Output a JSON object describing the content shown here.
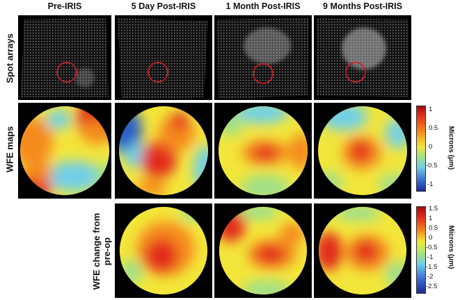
{
  "columns": [
    "Pre-IRIS",
    "5 Day Post-IRIS",
    "1 Month Post-IRIS",
    "9 Months Post-IRIS"
  ],
  "rows": {
    "spot_arrays": "Spot arrays",
    "wfe_maps": "WFE maps",
    "wfe_change": [
      "WFE change from",
      "pre-op"
    ]
  },
  "colorbars": [
    {
      "unit": "Microns (μm)",
      "ticks": [
        "1",
        "0.5",
        "0",
        "-0.5",
        "-1"
      ]
    },
    {
      "unit": "Microns (μm)",
      "ticks": [
        "1.5",
        "1",
        "0.5",
        "0",
        "-0.5",
        "-1",
        "-1.5",
        "-2",
        "-2.5"
      ]
    }
  ],
  "colors": {
    "red": "#e32a1c",
    "orange": "#f58a1f",
    "yellow": "#f3e63a",
    "cyan": "#6fd0e8",
    "blue": "#2a3fb0",
    "circle": "#c82020"
  }
}
